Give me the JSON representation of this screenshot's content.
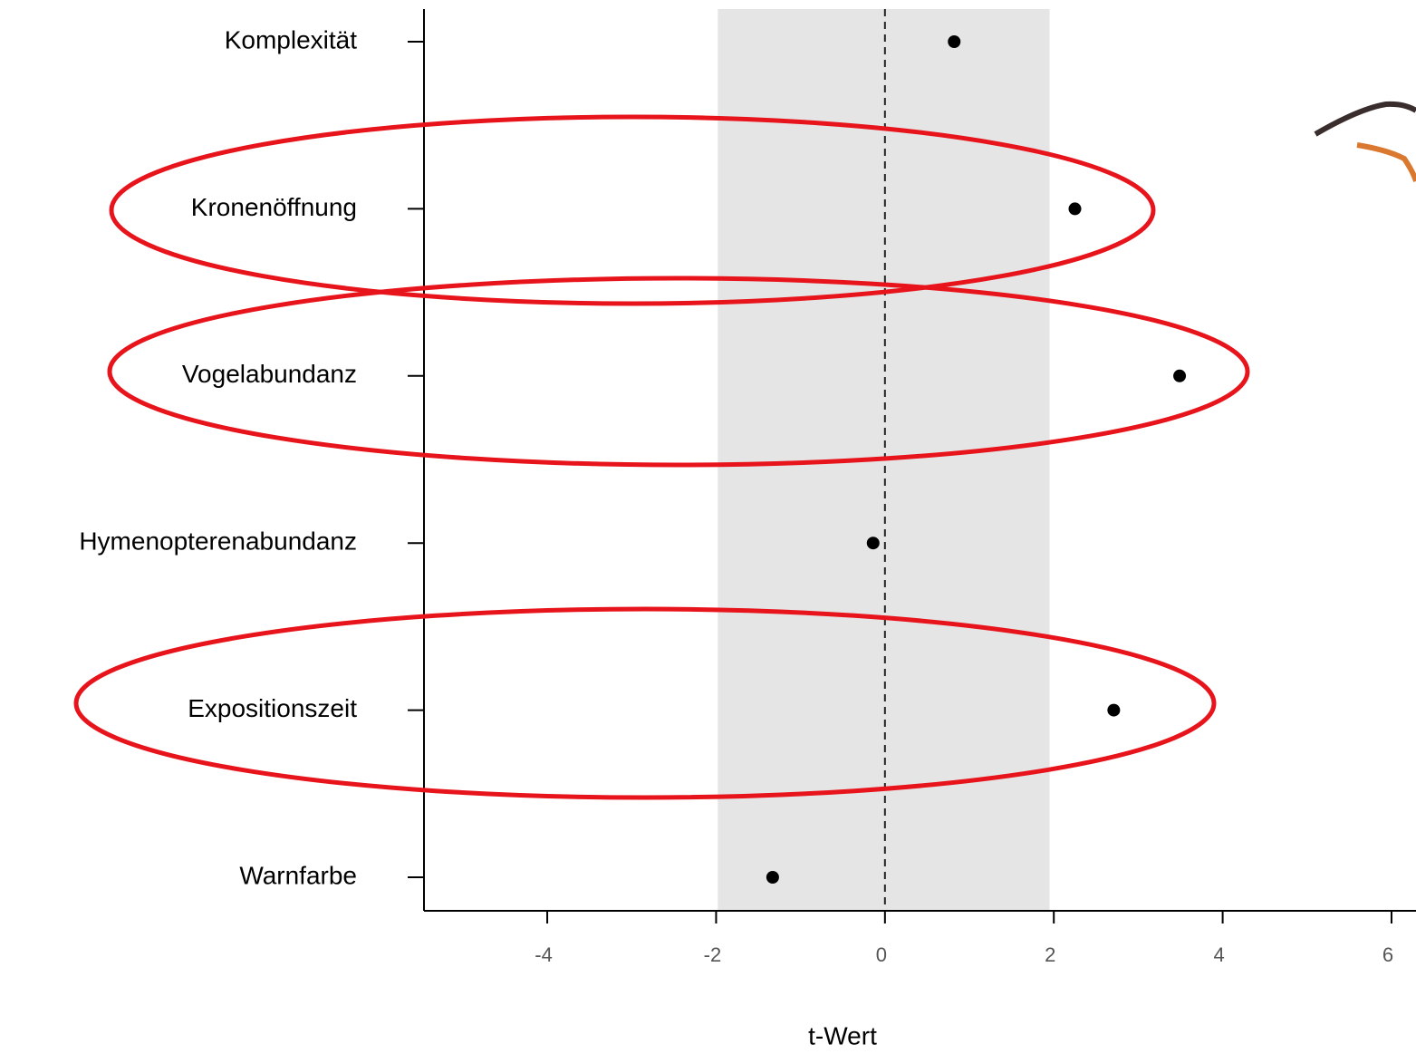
{
  "chart_data": {
    "type": "dot",
    "x_label": "t-Wert",
    "categories": [
      "Komplexität",
      "Kronenöffnung",
      "Vogelabundanz",
      "Hymenopterenabundanz",
      "Expositionszeit",
      "Warnfarbe"
    ],
    "values": [
      0.82,
      2.25,
      3.49,
      -0.14,
      2.71,
      -1.33
    ],
    "color": "#000000",
    "xlim": [
      -5.46,
      6.29
    ],
    "xticks": [
      -4,
      -2,
      0,
      2,
      4,
      6
    ],
    "band": [
      -1.98,
      1.95
    ],
    "band_color": "#e5e5e5",
    "reference_line": 0
  }
}
